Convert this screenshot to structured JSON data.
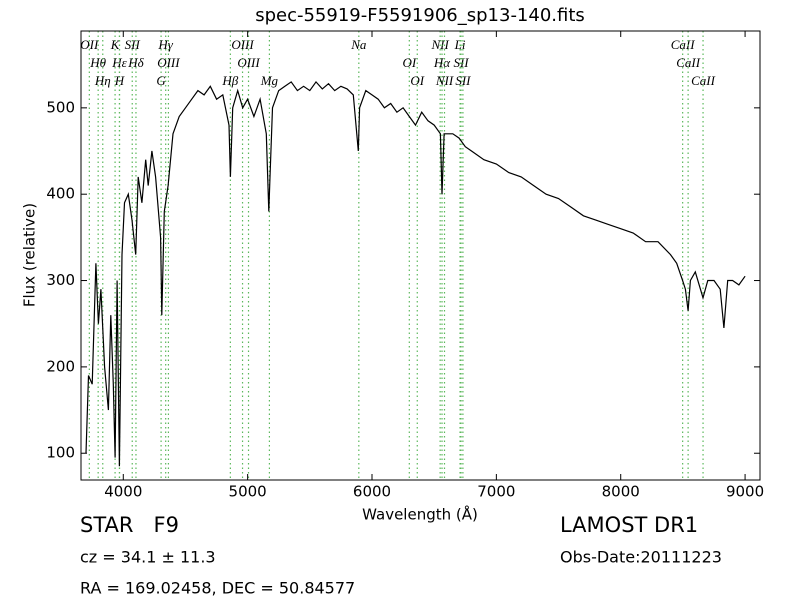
{
  "chart_data": {
    "type": "line",
    "title": "spec-55919-F5591906_sp13-140.fits",
    "x_label": "Wavelength (Å)",
    "y_label": "Flux (relative)",
    "xlim": [
      3660,
      9120
    ],
    "ylim": [
      69,
      589
    ],
    "xticks": [
      4000,
      5000,
      6000,
      7000,
      8000,
      9000
    ],
    "yticks": [
      100,
      200,
      300,
      400,
      500
    ],
    "series": [
      {
        "color": "#000000",
        "x": [
          3700,
          3720,
          3750,
          3780,
          3800,
          3820,
          3850,
          3880,
          3900,
          3920,
          3934,
          3950,
          3969,
          3990,
          4010,
          4040,
          4070,
          4100,
          4120,
          4150,
          4180,
          4200,
          4230,
          4260,
          4300,
          4310,
          4330,
          4360,
          4400,
          4450,
          4500,
          4550,
          4600,
          4650,
          4700,
          4750,
          4800,
          4850,
          4861,
          4880,
          4920,
          4960,
          5000,
          5050,
          5100,
          5150,
          5170,
          5180,
          5200,
          5250,
          5300,
          5350,
          5400,
          5450,
          5500,
          5550,
          5600,
          5650,
          5700,
          5750,
          5800,
          5850,
          5890,
          5900,
          5950,
          6000,
          6050,
          6100,
          6150,
          6200,
          6250,
          6300,
          6350,
          6400,
          6450,
          6500,
          6550,
          6563,
          6580,
          6650,
          6700,
          6750,
          6800,
          6900,
          7000,
          7100,
          7200,
          7300,
          7400,
          7500,
          7600,
          7700,
          7800,
          7900,
          8000,
          8100,
          8200,
          8300,
          8400,
          8450,
          8498,
          8520,
          8542,
          8560,
          8600,
          8662,
          8700,
          8750,
          8800,
          8830,
          8860,
          8900,
          8950,
          9000
        ],
        "values": [
          100,
          190,
          180,
          320,
          250,
          290,
          200,
          150,
          260,
          180,
          95,
          300,
          85,
          330,
          390,
          400,
          370,
          330,
          420,
          390,
          440,
          410,
          450,
          420,
          350,
          260,
          380,
          410,
          470,
          490,
          500,
          510,
          520,
          515,
          525,
          510,
          515,
          480,
          420,
          500,
          520,
          500,
          510,
          490,
          510,
          470,
          380,
          420,
          500,
          520,
          525,
          530,
          520,
          525,
          520,
          530,
          522,
          528,
          520,
          525,
          522,
          515,
          450,
          500,
          520,
          515,
          510,
          500,
          505,
          495,
          500,
          490,
          480,
          495,
          485,
          480,
          470,
          400,
          470,
          470,
          465,
          455,
          450,
          440,
          435,
          425,
          420,
          410,
          400,
          395,
          385,
          375,
          370,
          365,
          360,
          355,
          345,
          345,
          330,
          320,
          300,
          290,
          265,
          300,
          310,
          280,
          300,
          300,
          290,
          245,
          300,
          300,
          295,
          305
        ]
      }
    ],
    "lines_color": "#5cb85c",
    "lines": [
      {
        "label": "OII",
        "wavelength": 3727
      },
      {
        "label": "Hθ",
        "wavelength": 3798
      },
      {
        "label": "Hη",
        "wavelength": 3835
      },
      {
        "label": "K",
        "wavelength": 3934
      },
      {
        "label": "Hε",
        "wavelength": 3970
      },
      {
        "label": "H",
        "wavelength": 3969
      },
      {
        "label": "SII",
        "wavelength": 4072
      },
      {
        "label": "Hδ",
        "wavelength": 4102
      },
      {
        "label": "G",
        "wavelength": 4304
      },
      {
        "label": "Hγ",
        "wavelength": 4341
      },
      {
        "label": "OIII",
        "wavelength": 4363
      },
      {
        "label": "Hβ",
        "wavelength": 4861
      },
      {
        "label": "OIII",
        "wavelength": 4959
      },
      {
        "label": "OIII",
        "wavelength": 5007
      },
      {
        "label": "Mg",
        "wavelength": 5175
      },
      {
        "label": "Na",
        "wavelength": 5894
      },
      {
        "label": "OI",
        "wavelength": 6300
      },
      {
        "label": "OI",
        "wavelength": 6364
      },
      {
        "label": "NII",
        "wavelength": 6548
      },
      {
        "label": "Hα",
        "wavelength": 6563
      },
      {
        "label": "NII",
        "wavelength": 6583
      },
      {
        "label": "Li",
        "wavelength": 6708
      },
      {
        "label": "SII",
        "wavelength": 6716
      },
      {
        "label": "SII",
        "wavelength": 6731
      },
      {
        "label": "CaII",
        "wavelength": 8498
      },
      {
        "label": "CaII",
        "wavelength": 8542
      },
      {
        "label": "CaII",
        "wavelength": 8662
      }
    ]
  },
  "info": {
    "class": "STAR   F9",
    "cz": "cz = 34.1 ± 11.3",
    "coords": "RA = 169.02458, DEC = 50.84577",
    "survey": "LAMOST DR1",
    "obs_date": "Obs-Date:20111223"
  }
}
